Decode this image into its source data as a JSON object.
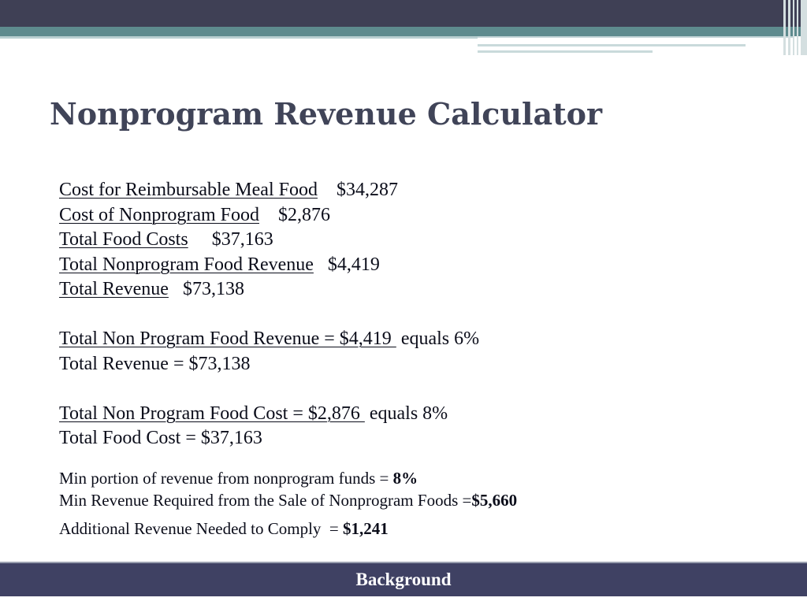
{
  "slide": {
    "title": "Nonprogram Revenue Calculator",
    "lines": {
      "cost_reimbursable_label": "Cost for Reimbursable Meal Food",
      "cost_reimbursable_value": "$34,287",
      "cost_nonprogram_label": "Cost of Nonprogram Food",
      "cost_nonprogram_value": "$2,876",
      "total_food_costs_label": "Total Food Costs",
      "total_food_costs_value": "$37,163",
      "total_nonprogram_revenue_label": "Total Nonprogram Food Revenue",
      "total_nonprogram_revenue_value": "$4,419",
      "total_revenue_label": "Total Revenue",
      "total_revenue_value": "$73,138"
    },
    "ratio_revenue": {
      "numerator": "Total Non Program Food Revenue = $4,419 ",
      "result": "equals 6%",
      "denominator": "Total Revenue = $73,138"
    },
    "ratio_cost": {
      "numerator": "Total Non Program Food Cost = $2,876 ",
      "result": "equals 8%",
      "denominator": "Total Food Cost = $37,163"
    },
    "summary": {
      "min_portion_label": "Min portion of revenue from nonprogram funds = ",
      "min_portion_value": "8%",
      "min_revenue_label": "Min Revenue Required from the Sale of Nonprogram Foods =",
      "min_revenue_value": "$5,660",
      "additional_label": "Additional Revenue Needed to Comply  = ",
      "additional_value": "$1,241"
    }
  },
  "footer": {
    "label": "Background"
  }
}
